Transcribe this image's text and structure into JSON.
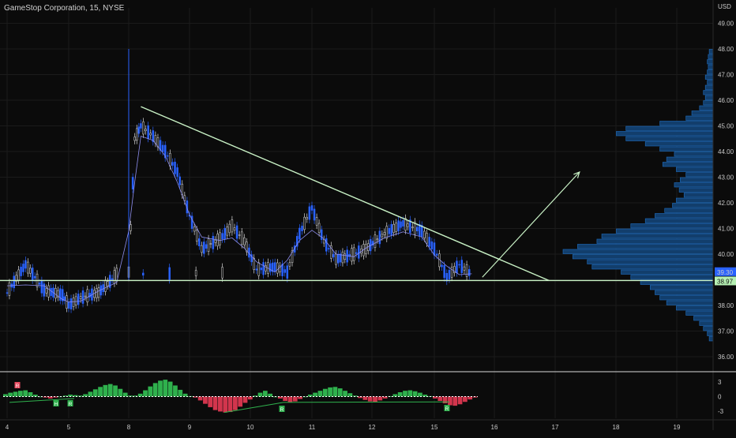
{
  "header": {
    "symbol": "GameStop Corporation, 15, NYSE",
    "currency": "USD"
  },
  "colors": {
    "background": "#0b0b0b",
    "grid": "#1b1b1b",
    "candle_up": "#2962ff",
    "candle_down": "#101010",
    "candle_down_border": "#d9d9d9",
    "trendline": "#c9f2c6",
    "vwap": "#8f8ff0",
    "volume_profile": "#123e6c",
    "volume_profile_edge": "#1f6fc2",
    "osc_pos": "#2fb14d",
    "osc_neg": "#d2354d",
    "last_price_badge": "#2962ff",
    "support_badge": "#b6f0b3"
  },
  "chart_data": [
    {
      "type": "line",
      "title": "GameStop Corporation, 15, NYSE",
      "xlabel": "",
      "ylabel": "",
      "x_ticks": [
        "4",
        "5",
        "8",
        "9",
        "10",
        "11",
        "12",
        "15",
        "16",
        "17",
        "18",
        "19"
      ],
      "y_ticks": [
        "36.00",
        "37.00",
        "38.00",
        "39.00",
        "40.00",
        "41.00",
        "42.00",
        "43.00",
        "44.00",
        "45.00",
        "46.00",
        "47.00",
        "48.00",
        "49.00"
      ],
      "ylim": [
        35.6,
        49.6
      ],
      "series": [
        {
          "values": [
            [
              4.0,
              38.5
            ],
            [
              4.3,
              39.6
            ],
            [
              4.6,
              38.6
            ],
            [
              4.9,
              38.4
            ],
            [
              5.0,
              38.0
            ],
            [
              5.2,
              38.3
            ],
            [
              5.5,
              38.5
            ],
            [
              5.8,
              39.2
            ],
            [
              8.0,
              39.3
            ],
            [
              8.1,
              44.5
            ],
            [
              8.2,
              45.0
            ],
            [
              8.4,
              44.6
            ],
            [
              8.6,
              44.0
            ],
            [
              8.8,
              43.2
            ],
            [
              9.0,
              41.5
            ],
            [
              9.2,
              40.2
            ],
            [
              9.5,
              40.6
            ],
            [
              9.7,
              41.1
            ],
            [
              9.9,
              40.5
            ],
            [
              10.1,
              39.4
            ],
            [
              10.4,
              39.5
            ],
            [
              10.6,
              39.3
            ],
            [
              10.8,
              40.8
            ],
            [
              11.0,
              41.8
            ],
            [
              11.2,
              40.5
            ],
            [
              11.4,
              39.8
            ],
            [
              11.7,
              40.0
            ],
            [
              11.9,
              40.2
            ],
            [
              12.2,
              40.8
            ],
            [
              12.5,
              41.2
            ],
            [
              12.8,
              40.9
            ],
            [
              13.0,
              40.2
            ],
            [
              13.2,
              39.1
            ],
            [
              13.4,
              39.6
            ],
            [
              13.6,
              39.2
            ]
          ]
        }
      ],
      "annotations": {
        "descending_trendline": {
          "from": [
            8.2,
            45.75
          ],
          "to": [
            16.9,
            38.97
          ]
        },
        "support_line": 38.97,
        "projection_arrow": {
          "from": [
            15.8,
            39.1
          ],
          "to": [
            17.4,
            43.2
          ]
        },
        "last_price": "39.30",
        "support_price": "38.97",
        "spike_high": 48.0
      },
      "volume_profile": {
        "prices": [
          36.7,
          36.9,
          37.1,
          37.3,
          37.5,
          37.7,
          37.9,
          38.1,
          38.3,
          38.5,
          38.7,
          38.9,
          39.1,
          39.3,
          39.5,
          39.7,
          39.9,
          40.1,
          40.3,
          40.5,
          40.7,
          40.9,
          41.1,
          41.3,
          41.5,
          41.7,
          41.9,
          42.1,
          42.3,
          42.5,
          42.7,
          42.9,
          43.1,
          43.3,
          43.5,
          43.7,
          43.9,
          44.1,
          44.3,
          44.5,
          44.7,
          44.9,
          45.1,
          45.3,
          45.5,
          45.7,
          45.9,
          46.1,
          46.3,
          46.5,
          46.7,
          46.9,
          47.1,
          47.3,
          47.5,
          47.7,
          47.9
        ],
        "volumes": [
          4,
          6,
          10,
          14,
          20,
          28,
          38,
          48,
          55,
          60,
          65,
          75,
          85,
          95,
          125,
          130,
          145,
          155,
          140,
          120,
          115,
          100,
          85,
          70,
          60,
          50,
          42,
          38,
          30,
          35,
          40,
          34,
          28,
          38,
          52,
          48,
          40,
          55,
          70,
          90,
          100,
          90,
          55,
          28,
          22,
          14,
          10,
          8,
          10,
          8,
          6,
          8,
          6,
          5,
          6,
          5,
          4
        ]
      }
    },
    {
      "type": "bar",
      "title": "",
      "xlabel": "",
      "ylabel": "",
      "y_ticks": [
        "3",
        "0",
        "-3"
      ],
      "ylim": [
        -4.5,
        4.5
      ],
      "values": [
        0.5,
        0.8,
        1.0,
        1.2,
        1.3,
        0.9,
        0.4,
        0.0,
        -0.2,
        -0.4,
        -0.2,
        0.0,
        0.2,
        0.4,
        0.3,
        0.2,
        0.5,
        1.0,
        1.5,
        2.0,
        2.4,
        2.6,
        2.3,
        1.6,
        0.8,
        0.2,
        0.2,
        0.6,
        1.3,
        2.1,
        2.8,
        3.3,
        3.5,
        3.1,
        2.3,
        1.4,
        0.6,
        0.1,
        -0.2,
        -0.8,
        -1.5,
        -2.2,
        -2.8,
        -3.1,
        -3.3,
        -3.2,
        -2.8,
        -2.1,
        -1.3,
        -0.6,
        0.2,
        0.8,
        1.2,
        0.6,
        0.0,
        -0.4,
        -0.9,
        -1.2,
        -1.0,
        -0.5,
        0.0,
        0.4,
        0.8,
        1.2,
        1.6,
        1.9,
        2.0,
        1.7,
        1.2,
        0.7,
        0.2,
        -0.3,
        -0.7,
        -1.0,
        -1.1,
        -0.8,
        -0.4,
        0.1,
        0.5,
        0.9,
        1.2,
        1.3,
        1.1,
        0.8,
        0.4,
        0.1,
        -0.4,
        -0.9,
        -1.4,
        -1.8,
        -1.9,
        -1.6,
        -1.1,
        -0.6,
        -0.2
      ],
      "markers": {
        "labels": [
          "R",
          "H",
          "R",
          "R",
          "R"
        ]
      }
    }
  ]
}
